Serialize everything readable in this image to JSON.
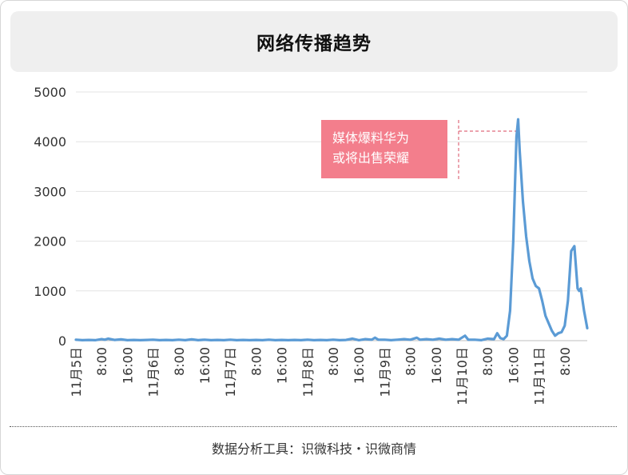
{
  "title": "网络传播趋势",
  "footer": "数据分析工具：识微科技・识微商情",
  "annotation": {
    "line1": "媒体爆料华为",
    "line2": "或将出售荣耀",
    "color": "#f37e8c"
  },
  "chart_data": {
    "type": "line",
    "ylim": [
      0,
      5000
    ],
    "yticks": [
      0,
      1000,
      2000,
      3000,
      4000,
      5000
    ],
    "x_range_hours": [
      0,
      146
    ],
    "xticks": [
      {
        "h": 0,
        "label": "11月5日"
      },
      {
        "h": 8,
        "label": "8:00"
      },
      {
        "h": 16,
        "label": "16:00"
      },
      {
        "h": 24,
        "label": "11月6日"
      },
      {
        "h": 32,
        "label": "8:00"
      },
      {
        "h": 40,
        "label": "16:00"
      },
      {
        "h": 48,
        "label": "11月7日"
      },
      {
        "h": 56,
        "label": "8:00"
      },
      {
        "h": 64,
        "label": "16:00"
      },
      {
        "h": 72,
        "label": "11月8日"
      },
      {
        "h": 80,
        "label": "8:00"
      },
      {
        "h": 88,
        "label": "16:00"
      },
      {
        "h": 96,
        "label": "11月9日"
      },
      {
        "h": 104,
        "label": "8:00"
      },
      {
        "h": 112,
        "label": "16:00"
      },
      {
        "h": 120,
        "label": "11月10日"
      },
      {
        "h": 128,
        "label": "8:00"
      },
      {
        "h": 136,
        "label": "16:00"
      },
      {
        "h": 144,
        "label": "11月11日"
      },
      {
        "h": 152,
        "label": "8:00"
      }
    ],
    "line_color": "#5b9bd5",
    "series": [
      {
        "points": [
          [
            0,
            20
          ],
          [
            2,
            10
          ],
          [
            4,
            15
          ],
          [
            6,
            10
          ],
          [
            8,
            30
          ],
          [
            9,
            20
          ],
          [
            10,
            40
          ],
          [
            12,
            15
          ],
          [
            14,
            25
          ],
          [
            16,
            10
          ],
          [
            18,
            15
          ],
          [
            20,
            10
          ],
          [
            22,
            15
          ],
          [
            24,
            20
          ],
          [
            26,
            10
          ],
          [
            28,
            15
          ],
          [
            30,
            10
          ],
          [
            32,
            20
          ],
          [
            34,
            10
          ],
          [
            36,
            25
          ],
          [
            38,
            10
          ],
          [
            40,
            20
          ],
          [
            42,
            10
          ],
          [
            44,
            15
          ],
          [
            46,
            10
          ],
          [
            48,
            20
          ],
          [
            50,
            10
          ],
          [
            52,
            15
          ],
          [
            54,
            10
          ],
          [
            56,
            15
          ],
          [
            58,
            10
          ],
          [
            60,
            20
          ],
          [
            62,
            10
          ],
          [
            64,
            15
          ],
          [
            66,
            10
          ],
          [
            68,
            15
          ],
          [
            70,
            10
          ],
          [
            72,
            20
          ],
          [
            74,
            10
          ],
          [
            76,
            15
          ],
          [
            78,
            10
          ],
          [
            80,
            20
          ],
          [
            82,
            10
          ],
          [
            84,
            15
          ],
          [
            86,
            40
          ],
          [
            88,
            10
          ],
          [
            90,
            30
          ],
          [
            92,
            20
          ],
          [
            93,
            60
          ],
          [
            94,
            20
          ],
          [
            96,
            20
          ],
          [
            98,
            10
          ],
          [
            100,
            20
          ],
          [
            102,
            30
          ],
          [
            104,
            20
          ],
          [
            106,
            60
          ],
          [
            107,
            20
          ],
          [
            109,
            30
          ],
          [
            111,
            20
          ],
          [
            113,
            40
          ],
          [
            115,
            20
          ],
          [
            117,
            30
          ],
          [
            119,
            20
          ],
          [
            121,
            100
          ],
          [
            122,
            20
          ],
          [
            124,
            20
          ],
          [
            126,
            10
          ],
          [
            128,
            40
          ],
          [
            130,
            30
          ],
          [
            131,
            150
          ],
          [
            132,
            50
          ],
          [
            133,
            30
          ],
          [
            134,
            100
          ],
          [
            135,
            600
          ],
          [
            136,
            2000
          ],
          [
            137,
            4100
          ],
          [
            137.5,
            4450
          ],
          [
            138,
            3800
          ],
          [
            139,
            2800
          ],
          [
            140,
            2100
          ],
          [
            141,
            1600
          ],
          [
            142,
            1250
          ],
          [
            143,
            1100
          ],
          [
            144,
            1050
          ],
          [
            145,
            800
          ],
          [
            146,
            500
          ],
          [
            147,
            350
          ],
          [
            148,
            200
          ],
          [
            149,
            100
          ],
          [
            150,
            150
          ],
          [
            151,
            170
          ],
          [
            152,
            300
          ],
          [
            153,
            800
          ],
          [
            154,
            1800
          ],
          [
            155,
            1900
          ],
          [
            156,
            1050
          ],
          [
            156.5,
            1000
          ],
          [
            157,
            1050
          ],
          [
            158,
            600
          ],
          [
            159,
            250
          ]
        ]
      }
    ]
  }
}
